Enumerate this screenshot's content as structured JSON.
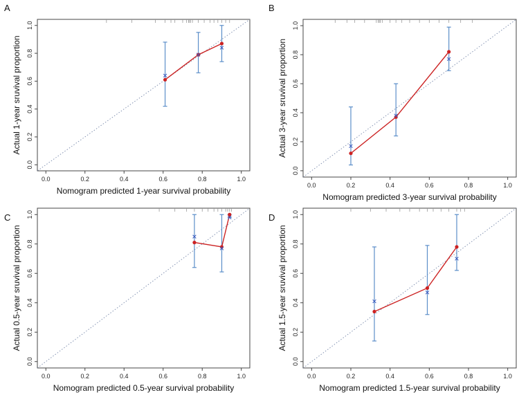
{
  "colors": {
    "curve": "#cc2222",
    "point": "#cc2222",
    "errorbar": "#5b8ec9",
    "km": "#3b5bbf",
    "diagonal": "#7788aa",
    "rug": "#999999",
    "frame": "#444444"
  },
  "chart_data": [
    {
      "id": "A",
      "type": "scatter",
      "panel_label": "A",
      "xlabel": "Nomogram predicted 1-year survival probability",
      "ylabel": "Actual 1-year sruvival proportion",
      "xlim": [
        0,
        1
      ],
      "ylim": [
        0,
        1
      ],
      "ticks": [
        0,
        0.2,
        0.4,
        0.6,
        0.8,
        1.0
      ],
      "tick_labels": [
        "0.0",
        "0.2",
        "0.4",
        "0.6",
        "0.8",
        "1.0"
      ],
      "reference_line": "ideal diagonal y = x",
      "predicted": [
        0.61,
        0.78,
        0.9
      ],
      "observed": [
        0.61,
        0.79,
        0.87
      ],
      "km_estimate": [
        0.64,
        0.79,
        0.84
      ],
      "ci_lower": [
        0.42,
        0.66,
        0.74
      ],
      "ci_upper": [
        0.88,
        0.95,
        1.0
      ],
      "rug": [
        0.31,
        0.44,
        0.56,
        0.61,
        0.64,
        0.66,
        0.7,
        0.72,
        0.73,
        0.735,
        0.74,
        0.75,
        0.78,
        0.81,
        0.84,
        0.86,
        0.88,
        0.9,
        0.92,
        0.94
      ]
    },
    {
      "id": "B",
      "type": "scatter",
      "panel_label": "B",
      "xlabel": "Nomogram predicted 3-year survival probability",
      "ylabel": "Actual 3-year sruvival proportion",
      "xlim": [
        0,
        1
      ],
      "ylim": [
        0,
        1
      ],
      "ticks": [
        0,
        0.2,
        0.4,
        0.6,
        0.8,
        1.0
      ],
      "tick_labels": [
        "0.0",
        "0.2",
        "0.4",
        "0.6",
        "0.8",
        "1.0"
      ],
      "reference_line": "ideal diagonal y = x",
      "predicted": [
        0.2,
        0.43,
        0.7
      ],
      "observed": [
        0.12,
        0.37,
        0.82
      ],
      "km_estimate": [
        0.17,
        0.38,
        0.77
      ],
      "ci_lower": [
        0.04,
        0.24,
        0.69
      ],
      "ci_upper": [
        0.44,
        0.6,
        0.99
      ],
      "rug": [
        0.12,
        0.18,
        0.22,
        0.27,
        0.33,
        0.34,
        0.345,
        0.35,
        0.36,
        0.4,
        0.43,
        0.46,
        0.5,
        0.55,
        0.6,
        0.65,
        0.7,
        0.76,
        0.82
      ]
    },
    {
      "id": "C",
      "type": "scatter",
      "panel_label": "C",
      "xlabel": "Nomogram predicted 0.5-year survival probability",
      "ylabel": "Actual 0.5-year sruvival proportion",
      "xlim": [
        0,
        1
      ],
      "ylim": [
        0,
        1
      ],
      "ticks": [
        0,
        0.2,
        0.4,
        0.6,
        0.8,
        1.0
      ],
      "tick_labels": [
        "0.0",
        "0.2",
        "0.4",
        "0.6",
        "0.8",
        "1.0"
      ],
      "reference_line": "ideal diagonal y = x",
      "predicted": [
        0.76,
        0.9,
        0.94
      ],
      "observed": [
        0.81,
        0.78,
        1.0
      ],
      "km_estimate": [
        0.85,
        0.77,
        0.98
      ],
      "ci_lower": [
        0.64,
        0.61,
        0.98
      ],
      "ci_upper": [
        1.0,
        1.0,
        1.0
      ],
      "rug": [
        0.58,
        0.66,
        0.72,
        0.76,
        0.8,
        0.83,
        0.86,
        0.88,
        0.9,
        0.92,
        0.93,
        0.94,
        0.95
      ]
    },
    {
      "id": "D",
      "type": "scatter",
      "panel_label": "D",
      "xlabel": "Nomogram predicted 1.5-year survival probability",
      "ylabel": "Actual 1.5-year sruvival proportion",
      "xlim": [
        0,
        1
      ],
      "ylim": [
        0,
        1
      ],
      "ticks": [
        0,
        0.2,
        0.4,
        0.6,
        0.8,
        1.0
      ],
      "tick_labels": [
        "0.0",
        "0.2",
        "0.4",
        "0.6",
        "0.8",
        "1.0"
      ],
      "reference_line": "ideal diagonal y = x",
      "predicted": [
        0.32,
        0.59,
        0.74
      ],
      "observed": [
        0.34,
        0.5,
        0.78
      ],
      "km_estimate": [
        0.41,
        0.47,
        0.7
      ],
      "ci_lower": [
        0.14,
        0.32,
        0.62
      ],
      "ci_upper": [
        0.78,
        0.79,
        1.0
      ],
      "rug": [
        0.2,
        0.3,
        0.38,
        0.45,
        0.5,
        0.55,
        0.59,
        0.62,
        0.66,
        0.7,
        0.74,
        0.76,
        0.78
      ]
    }
  ]
}
